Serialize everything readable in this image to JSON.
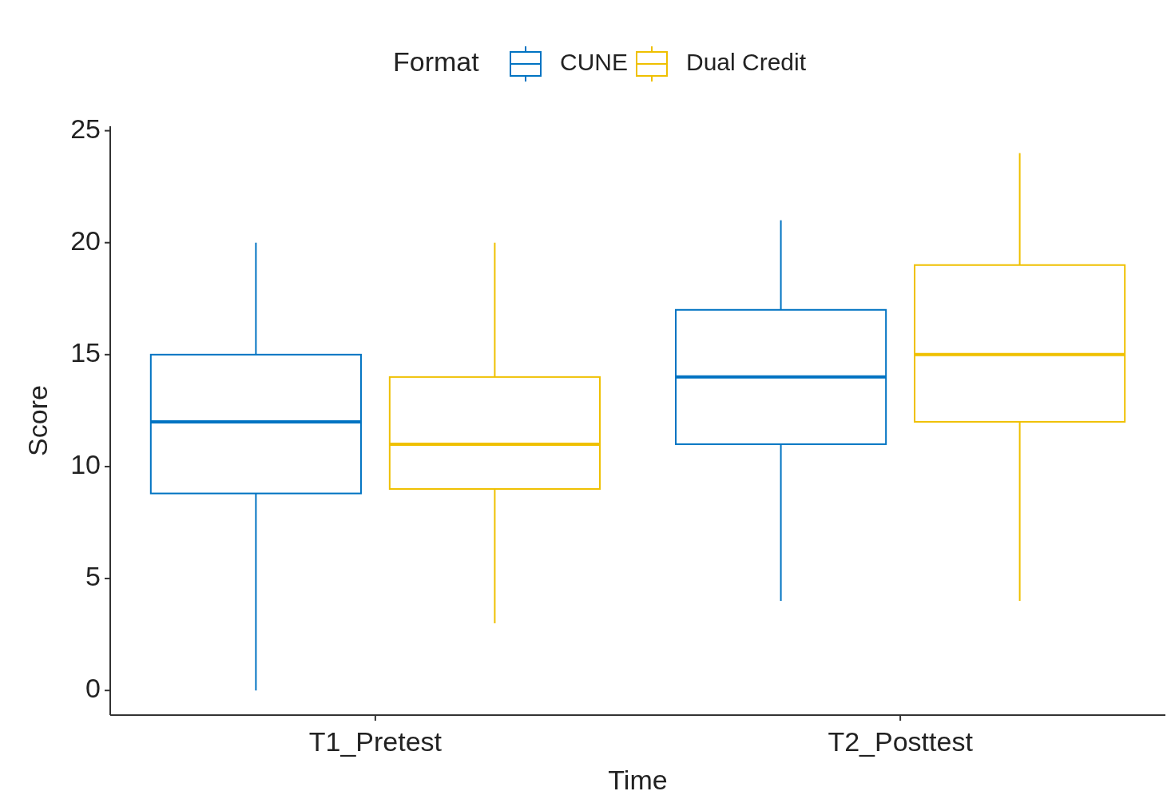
{
  "chart_data": {
    "type": "box",
    "xlabel": "Time",
    "ylabel": "Score",
    "legend_title": "Format",
    "legend": "top",
    "grid": false,
    "categories": [
      "T1_Pretest",
      "T2_Posttest"
    ],
    "ylim": [
      -1.1,
      25.2
    ],
    "yticks": [
      0,
      5,
      10,
      15,
      20,
      25
    ],
    "series": [
      {
        "name": "CUNE",
        "color": "#0073c2",
        "boxes": [
          {
            "low": 0,
            "q1": 8.8,
            "median": 12,
            "q3": 15,
            "high": 20
          },
          {
            "low": 4,
            "q1": 11,
            "median": 14,
            "q3": 17,
            "high": 21
          }
        ]
      },
      {
        "name": "Dual Credit",
        "color": "#efc000",
        "boxes": [
          {
            "low": 3,
            "q1": 9,
            "median": 11,
            "q3": 14,
            "high": 20
          },
          {
            "low": 4,
            "q1": 12,
            "median": 15,
            "q3": 19,
            "high": 24
          }
        ]
      }
    ]
  }
}
